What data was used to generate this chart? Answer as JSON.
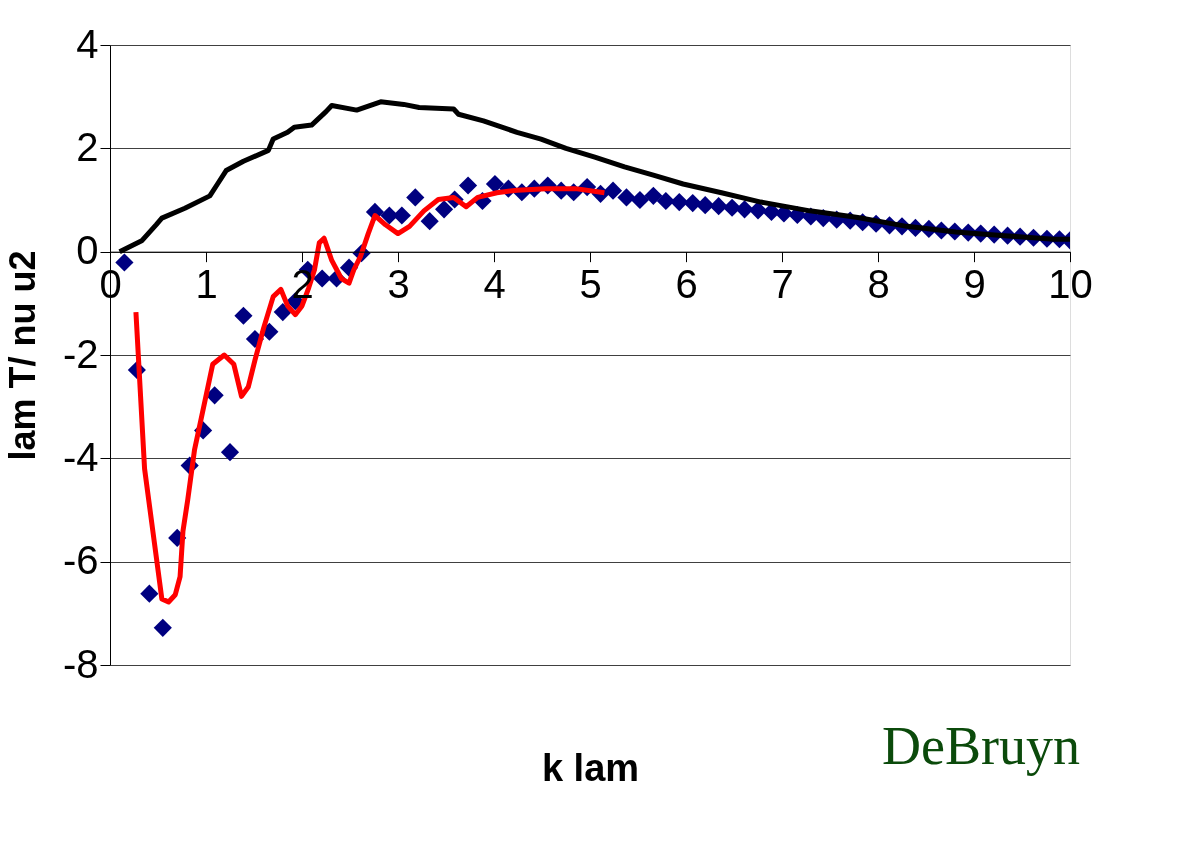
{
  "chart_data": {
    "type": "line",
    "xlabel": "k lam",
    "ylabel": "lam T/ nu u2",
    "xlim": [
      0,
      10
    ],
    "xticks": [
      0,
      1,
      2,
      3,
      4,
      5,
      6,
      7,
      8,
      9,
      10
    ],
    "ylim": [
      -8,
      4
    ],
    "yticks": [
      -8,
      -6,
      -4,
      -2,
      0,
      2,
      4
    ],
    "grid": "y",
    "line_style": "solid",
    "annotations": [
      "DeBruyn"
    ],
    "series": [
      {
        "color": "#000000",
        "x": [
          0.1,
          0.33,
          0.48,
          0.54,
          0.78,
          1.04,
          1.12,
          1.21,
          1.39,
          1.65,
          1.7,
          1.85,
          1.92,
          2.1,
          2.25,
          2.31,
          2.57,
          2.82,
          3.06,
          3.22,
          3.58,
          3.63,
          3.89,
          4.24,
          4.49,
          4.75,
          5.05,
          5.36,
          5.66,
          5.97,
          6.37,
          6.78,
          7.29,
          7.79,
          8.3,
          8.81,
          9.32,
          9.83,
          10.0
        ],
        "values": [
          0,
          0.21,
          0.52,
          0.65,
          0.84,
          1.08,
          1.31,
          1.57,
          1.75,
          1.96,
          2.18,
          2.31,
          2.41,
          2.45,
          2.71,
          2.83,
          2.74,
          2.9,
          2.85,
          2.79,
          2.76,
          2.66,
          2.53,
          2.31,
          2.18,
          2.0,
          1.83,
          1.64,
          1.48,
          1.31,
          1.14,
          0.96,
          0.79,
          0.66,
          0.49,
          0.38,
          0.31,
          0.24,
          0.24
        ]
      },
      {
        "color": "#ff0000",
        "x": [
          0.27,
          0.36,
          0.46,
          0.54,
          0.61,
          0.68,
          0.73,
          0.76,
          0.81,
          0.88,
          0.99,
          1.07,
          1.19,
          1.29,
          1.37,
          1.44,
          1.51,
          1.6,
          1.7,
          1.78,
          1.85,
          1.93,
          2.0,
          2.07,
          2.13,
          2.18,
          2.23,
          2.31,
          2.41,
          2.49,
          2.54,
          2.61,
          2.69,
          2.76,
          2.87,
          3.0,
          3.12,
          3.27,
          3.42,
          3.58,
          3.71,
          3.83,
          4.03,
          4.24,
          4.54,
          4.85,
          5.15
        ],
        "values": [
          -1.17,
          -4.2,
          -5.6,
          -6.72,
          -6.78,
          -6.64,
          -6.29,
          -5.41,
          -4.8,
          -3.84,
          -2.88,
          -2.18,
          -2.0,
          -2.18,
          -2.8,
          -2.62,
          -2.1,
          -1.48,
          -0.87,
          -0.73,
          -1.05,
          -1.22,
          -1.05,
          -0.7,
          -0.35,
          0.17,
          0.26,
          -0.17,
          -0.52,
          -0.61,
          -0.35,
          -0.09,
          0.35,
          0.7,
          0.52,
          0.35,
          0.49,
          0.79,
          1.01,
          1.05,
          0.87,
          1.05,
          1.14,
          1.19,
          1.22,
          1.22,
          1.14
        ]
      },
      {
        "type": "scatter",
        "color": "#000080",
        "marker": "diamond",
        "x": [
          0.15,
          0.28,
          0.41,
          0.55,
          0.7,
          0.83,
          0.97,
          1.09,
          1.25,
          1.39,
          1.51,
          1.66,
          1.8,
          1.93,
          2.06,
          2.21,
          2.36,
          2.49,
          2.62,
          2.76,
          2.91,
          3.04,
          3.18,
          3.33,
          3.48,
          3.59,
          3.73,
          3.88,
          4.01,
          4.15,
          4.29,
          4.42,
          4.56,
          4.7,
          4.83,
          4.97,
          5.11,
          5.24,
          5.38,
          5.52,
          5.66,
          5.79,
          5.93,
          6.07,
          6.2,
          6.34,
          6.48,
          6.61,
          6.75,
          6.89,
          7.02,
          7.16,
          7.3,
          7.43,
          7.57,
          7.71,
          7.84,
          7.98,
          8.12,
          8.25,
          8.39,
          8.53,
          8.66,
          8.8,
          8.94,
          9.07,
          9.21,
          9.35,
          9.48,
          9.62,
          9.76,
          9.89,
          10.0
        ],
        "values": [
          -0.21,
          -2.29,
          -6.62,
          -7.28,
          -5.54,
          -4.14,
          -3.46,
          -2.78,
          -3.88,
          -1.24,
          -1.69,
          -1.55,
          -1.17,
          -0.96,
          -0.35,
          -0.52,
          -0.52,
          -0.31,
          -0.03,
          0.77,
          0.7,
          0.7,
          1.05,
          0.59,
          0.82,
          1.01,
          1.28,
          0.98,
          1.31,
          1.22,
          1.15,
          1.22,
          1.28,
          1.18,
          1.15,
          1.25,
          1.12,
          1.18,
          1.05,
          1.0,
          1.08,
          0.98,
          0.96,
          0.94,
          0.9,
          0.88,
          0.85,
          0.82,
          0.8,
          0.77,
          0.74,
          0.71,
          0.68,
          0.65,
          0.62,
          0.6,
          0.57,
          0.54,
          0.51,
          0.49,
          0.46,
          0.44,
          0.41,
          0.39,
          0.37,
          0.35,
          0.33,
          0.31,
          0.29,
          0.27,
          0.25,
          0.24,
          0.22
        ]
      }
    ]
  }
}
